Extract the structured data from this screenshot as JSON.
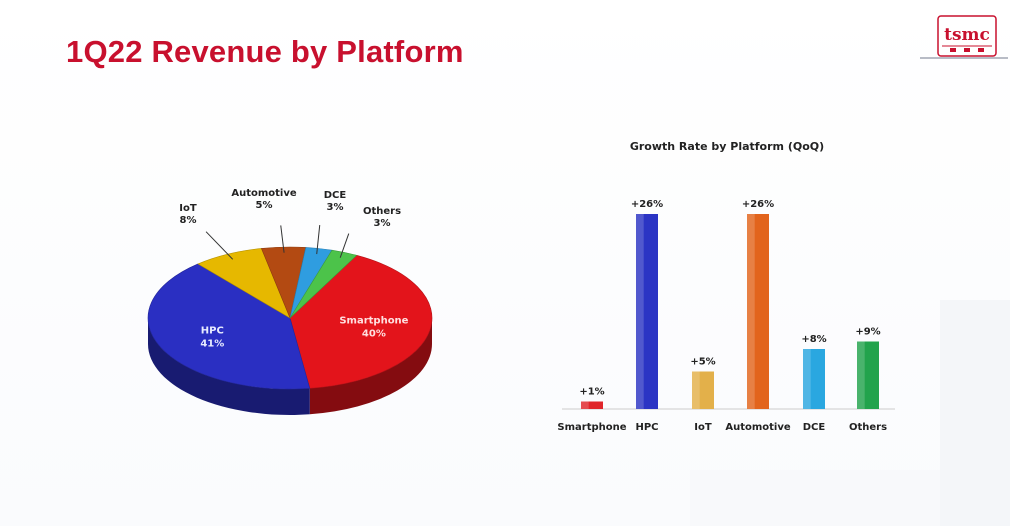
{
  "slide": {
    "title": "1Q22 Revenue by Platform",
    "logo_text": "tsmc"
  },
  "chart_data": [
    {
      "type": "pie",
      "title": "",
      "categories": [
        "Smartphone",
        "HPC",
        "IoT",
        "Automotive",
        "DCE",
        "Others"
      ],
      "values": [
        40,
        41,
        8,
        5,
        3,
        3
      ],
      "value_labels": [
        "40%",
        "41%",
        "8%",
        "5%",
        "3%",
        "3%"
      ],
      "colors": [
        "#e3141b",
        "#2a2fc2",
        "#e6b800",
        "#b34a12",
        "#2f9de0",
        "#4cc34a"
      ],
      "style": "3d"
    },
    {
      "type": "bar",
      "title": "Growth Rate by Platform (QoQ)",
      "categories": [
        "Smartphone",
        "HPC",
        "IoT",
        "Automotive",
        "DCE",
        "Others"
      ],
      "values": [
        1,
        26,
        5,
        26,
        8,
        9
      ],
      "value_labels": [
        "+1%",
        "+26%",
        "+5%",
        "+26%",
        "+8%",
        "+9%"
      ],
      "colors": [
        "#e0252a",
        "#2b34c4",
        "#e3b04a",
        "#e2641c",
        "#2aa7e0",
        "#22a34c"
      ],
      "xlabel": "",
      "ylabel": "",
      "ylim": [
        0,
        30
      ],
      "grid": false,
      "legend": "none"
    }
  ]
}
